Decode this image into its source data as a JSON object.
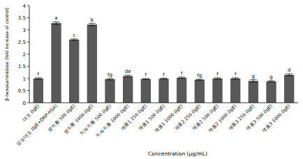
{
  "chart_data": {
    "type": "bar",
    "ylabel": "β-hexosaminidase (fold increase of control)",
    "xlabel": "Concentration (μg/mL)",
    "categories": [
      "대조 (IgE)",
      "양성대조 (IgE+DNP-HSA)",
      "생지황 500 (IgE)",
      "생지황 1000 (IgE)",
      "지숙지황 500 (IgE)",
      "지숙지황 1000 (IgE)",
      "제품1 250 (IgE)",
      "제품1 500 (IgE)",
      "제품1 1000 (IgE)",
      "제품2 250 (IgE)",
      "제품2 500 (IgE)",
      "제품2 1000 (IgE)",
      "제품3 250 (IgE)",
      "제품3 500 (IgE)",
      "제품3 1000 (IgE)"
    ],
    "values": [
      1.0,
      3.28,
      2.6,
      3.22,
      0.97,
      1.1,
      0.98,
      0.99,
      1.03,
      0.95,
      1.0,
      1.0,
      0.9,
      0.88,
      1.15
    ],
    "errors": [
      0.03,
      0.05,
      0.03,
      0.05,
      0.03,
      0.04,
      0.02,
      0.02,
      0.03,
      0.02,
      0.03,
      0.03,
      0.05,
      0.03,
      0.04
    ],
    "annotations": [
      "f",
      "a",
      "c",
      "b",
      "fg",
      "de",
      "f",
      "f",
      "f",
      "fg",
      "f",
      "f",
      "g",
      "g",
      "d"
    ],
    "color": "#595959",
    "ylim": [
      0,
      4
    ],
    "yticks": [
      0,
      0.5,
      1,
      1.5,
      2,
      2.5,
      3,
      3.5,
      4
    ],
    "grid": false
  }
}
